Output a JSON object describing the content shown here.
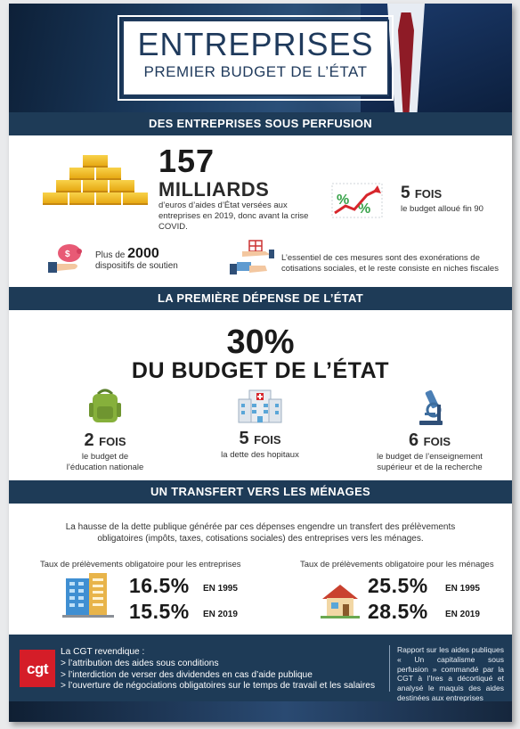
{
  "header": {
    "title": "ENTREPRISES",
    "subtitle": "PREMIER BUDGET DE L’ÉTAT"
  },
  "sections": {
    "perfusion": {
      "heading": "DES ENTREPRISES SOUS PERFUSION",
      "amount": "157",
      "unit": "MILLIARDS",
      "amount_text": "d’euros d’aides d’État versées aux entreprises en 2019, donc avant la crise COVID.",
      "multiplier": "5",
      "multiplier_word": "FOIS",
      "multiplier_text": "le budget alloué fin 90",
      "dispositifs_prefix": "Plus de",
      "dispositifs_count": "2000",
      "dispositifs_text": "dispositifs de soutien",
      "essentiel_text": "L’essentiel de ces mesures sont des exonérations de cotisations sociales, et le reste consiste en niches fiscales"
    },
    "depense": {
      "heading": "LA PREMIÈRE DÉPENSE DE L’ÉTAT",
      "percent": "30%",
      "percent_text": "DU BUDGET DE L’ÉTAT",
      "items": [
        {
          "num": "2",
          "word": "FOIS",
          "text1": "le budget de",
          "text2": "l’éducation nationale",
          "icon": "backpack-icon"
        },
        {
          "num": "5",
          "word": "FOIS",
          "text1": "la dette des hopitaux",
          "text2": "",
          "icon": "hospital-icon"
        },
        {
          "num": "6",
          "word": "FOIS",
          "text1": "le budget de l’enseignement",
          "text2": "supérieur et de la recherche",
          "icon": "microscope-icon"
        }
      ]
    },
    "transfert": {
      "heading": "UN TRANSFERT VERS LES MÉNAGES",
      "intro": "La hausse de la dette publique générée par ces dépenses engendre un transfert des prélèvements obligatoires (impôts, taxes, cotisations sociales) des entreprises vers les ménages.",
      "entreprises": {
        "label": "Taux de prélèvements obligatoire pour les entreprises",
        "rows": [
          {
            "rate": "16.5%",
            "year": "EN 1995"
          },
          {
            "rate": "15.5%",
            "year": "EN 2019"
          }
        ]
      },
      "menages": {
        "label": "Taux de prélèvements obligatoire pour les ménages",
        "rows": [
          {
            "rate": "25.5%",
            "year": "EN 1995"
          },
          {
            "rate": "28.5%",
            "year": "EN 2019"
          }
        ]
      }
    }
  },
  "footer": {
    "logo": "cgt",
    "revendique": "La CGT revendique :",
    "demands": [
      "> l’attribution des aides sous conditions",
      "> l’interdiction de verser des dividendes en cas d’aide publique",
      "> l’ouverture de négociations obligatoires sur le temps de travail et les salaires"
    ],
    "rapport": "Rapport sur les aides publiques « Un capitalisme sous perfusion » commandé par la CGT à l’Ires a décortiqué et analysé le maquis des aides destinées aux entreprises"
  },
  "colors": {
    "navy": "#1e3b57",
    "gold": "#e7a914",
    "cgt_red": "#d51d28"
  }
}
